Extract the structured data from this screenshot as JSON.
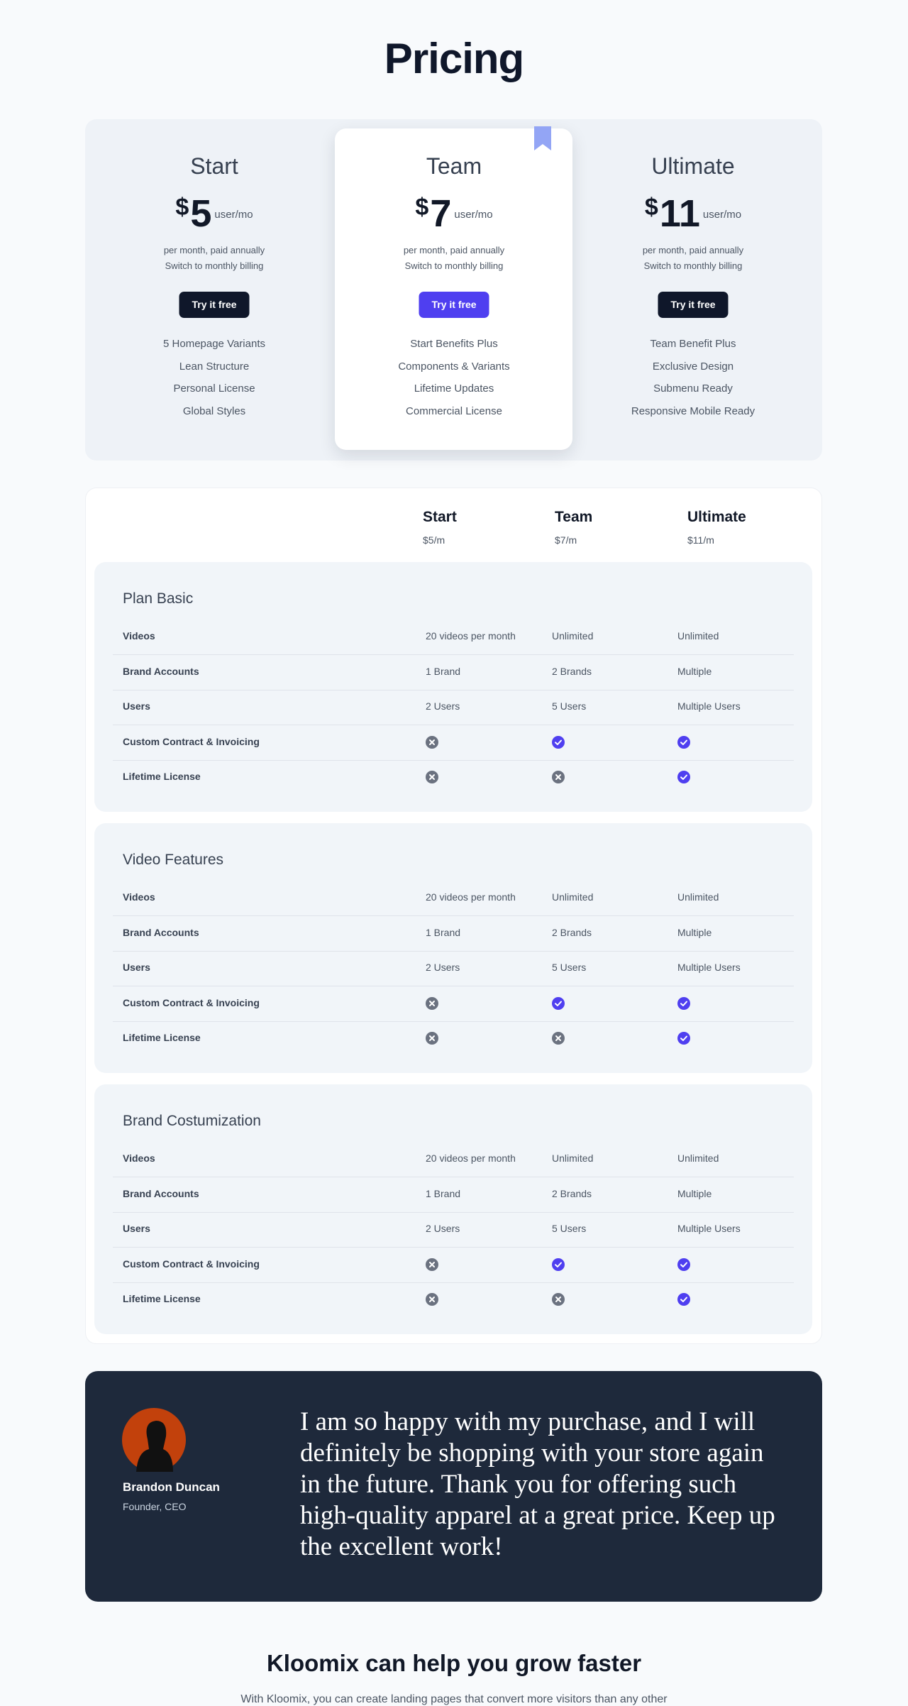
{
  "header": {
    "title": "Pricing"
  },
  "plans": [
    {
      "name": "Start",
      "currency": "$",
      "price": 5,
      "unit": "user/mo",
      "note": "per month, paid annually",
      "switch": "Switch to monthly billing",
      "button": "Try it free",
      "featured": false,
      "features": [
        "5 Homepage Variants",
        "Lean Structure",
        "Personal License",
        "Global Styles"
      ]
    },
    {
      "name": "Team",
      "currency": "$",
      "price": 7,
      "unit": "user/mo",
      "note": "per month, paid annually",
      "switch": "Switch to monthly billing",
      "button": "Try it free",
      "featured": true,
      "features": [
        "Start Benefits Plus",
        "Components & Variants",
        "Lifetime Updates",
        "Commercial License"
      ]
    },
    {
      "name": "Ultimate",
      "currency": "$",
      "price": 11,
      "unit": "user/mo",
      "note": "per month, paid annually",
      "switch": "Switch to monthly billing",
      "button": "Try it free",
      "featured": false,
      "features": [
        "Team Benefit Plus",
        "Exclusive Design",
        "Submenu Ready",
        "Responsive Mobile Ready"
      ]
    }
  ],
  "comparison": {
    "columns": [
      {
        "name": "Start",
        "price": "$5/m"
      },
      {
        "name": "Team",
        "price": "$7/m"
      },
      {
        "name": "Ultimate",
        "price": "$11/m"
      }
    ],
    "sections": [
      {
        "title": "Plan Basic",
        "rows": [
          {
            "label": "Videos",
            "cells": [
              "20 videos per month",
              "Unlimited",
              "Unlimited"
            ]
          },
          {
            "label": "Brand Accounts",
            "cells": [
              "1 Brand",
              "2 Brands",
              "Multiple"
            ]
          },
          {
            "label": "Users",
            "cells": [
              "2 Users",
              "5 Users",
              "Multiple Users"
            ]
          },
          {
            "label": "Custom Contract & Invoicing",
            "cells": [
              false,
              true,
              true
            ]
          },
          {
            "label": "Lifetime License",
            "cells": [
              false,
              false,
              true
            ]
          }
        ]
      },
      {
        "title": "Video Features",
        "rows": [
          {
            "label": "Videos",
            "cells": [
              "20 videos per month",
              "Unlimited",
              "Unlimited"
            ]
          },
          {
            "label": "Brand Accounts",
            "cells": [
              "1 Brand",
              "2 Brands",
              "Multiple"
            ]
          },
          {
            "label": "Users",
            "cells": [
              "2 Users",
              "5 Users",
              "Multiple Users"
            ]
          },
          {
            "label": "Custom Contract & Invoicing",
            "cells": [
              false,
              true,
              true
            ]
          },
          {
            "label": "Lifetime License",
            "cells": [
              false,
              false,
              true
            ]
          }
        ]
      },
      {
        "title": "Brand Costumization",
        "rows": [
          {
            "label": "Videos",
            "cells": [
              "20 videos per month",
              "Unlimited",
              "Unlimited"
            ]
          },
          {
            "label": "Brand Accounts",
            "cells": [
              "1 Brand",
              "2 Brands",
              "Multiple"
            ]
          },
          {
            "label": "Users",
            "cells": [
              "2 Users",
              "5 Users",
              "Multiple Users"
            ]
          },
          {
            "label": "Custom Contract & Invoicing",
            "cells": [
              false,
              true,
              true
            ]
          },
          {
            "label": "Lifetime License",
            "cells": [
              false,
              false,
              true
            ]
          }
        ]
      }
    ]
  },
  "testimonial": {
    "name": "Brandon Duncan",
    "role": "Founder, CEO",
    "quote": "I am so happy with my purchase, and I will definitely be shopping with your store again in the future. Thank you for offering such high-quality apparel at a great price. Keep up the excellent work!"
  },
  "cta": {
    "title": "Kloomix can help you grow faster",
    "text": "With Kloomix, you can create landing pages that convert more visitors than any other"
  }
}
